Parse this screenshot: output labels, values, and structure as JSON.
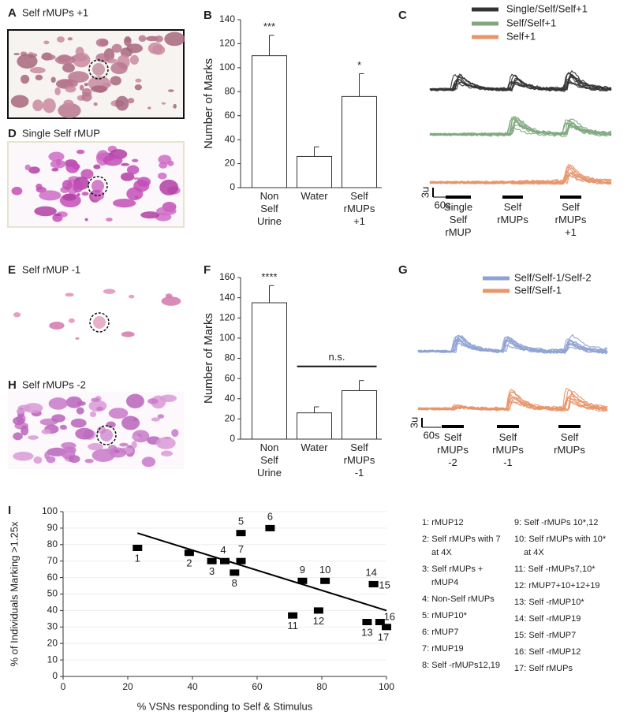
{
  "panels": [
    {
      "letter": "A",
      "title": "Self rMUPs +1"
    },
    {
      "letter": "D",
      "title": "Single Self rMUP"
    },
    {
      "letter": "E",
      "title": "Self rMUP -1"
    },
    {
      "letter": "H",
      "title": "Self rMUPs -2"
    }
  ],
  "chart_data": [
    {
      "letter": "B",
      "type": "bar",
      "ylabel": "Number of Marks",
      "categories": [
        "Non Self Urine",
        "Water",
        "Self rMUPs +1"
      ],
      "values": [
        110,
        26,
        76
      ],
      "errors": [
        17,
        8,
        19
      ],
      "significance": [
        "***",
        null,
        "*"
      ],
      "ylim": [
        0,
        140
      ],
      "yticks": [
        0,
        20,
        40,
        60,
        80,
        100,
        120,
        140
      ],
      "color": "#ffffff"
    },
    {
      "letter": "C",
      "type": "traces",
      "series": [
        {
          "name": "Single/Self/Self+1",
          "color": "#333333"
        },
        {
          "name": "Self/Self+1",
          "color": "#7fa87f"
        },
        {
          "name": "Self+1",
          "color": "#e8956a"
        }
      ],
      "stimuli": [
        "Single Self rMUP",
        "Self rMUPs",
        "Self rMUPs +1"
      ],
      "scale_y": "3u",
      "scale_x": "60s"
    },
    {
      "letter": "F",
      "type": "bar",
      "ylabel": "Number of Marks",
      "categories": [
        "Non Self Urine",
        "Water",
        "Self rMUPs -1"
      ],
      "values": [
        135,
        26,
        48
      ],
      "errors": [
        17,
        6,
        10
      ],
      "significance": [
        "****",
        null,
        null
      ],
      "bracket": "n.s.",
      "ylim": [
        0,
        160
      ],
      "yticks": [
        0,
        20,
        40,
        60,
        80,
        100,
        120,
        140,
        160
      ],
      "color": "#ffffff"
    },
    {
      "letter": "G",
      "type": "traces",
      "series": [
        {
          "name": "Self/Self-1/Self-2",
          "color": "#8fa3d3"
        },
        {
          "name": "Self/Self-1",
          "color": "#e8956a"
        }
      ],
      "stimuli": [
        "Self rMUPs -2",
        "Self rMUPs -1",
        "Self rMUPs"
      ],
      "scale_y": "3u",
      "scale_x": "60s"
    },
    {
      "letter": "I",
      "type": "scatter",
      "xlabel": "% VSNs responding to Self & Stimulus",
      "ylabel": "% of Individuals Marking >1.25x",
      "x": [
        23,
        39,
        46,
        50,
        55,
        64,
        55,
        53,
        74,
        81,
        71,
        79,
        94,
        96,
        96,
        98,
        100
      ],
      "y": [
        78,
        75,
        70,
        70,
        87,
        90,
        70,
        63,
        58,
        58,
        37,
        40,
        33,
        56,
        56,
        33,
        30
      ],
      "labels": [
        "1",
        "2",
        "3",
        "4",
        "5",
        "6",
        "7",
        "8",
        "9",
        "10",
        "11",
        "12",
        "13",
        "14",
        "15",
        "16",
        "17"
      ],
      "trendline": {
        "x": [
          23,
          100
        ],
        "y": [
          87,
          40
        ]
      },
      "xlim": [
        0,
        100
      ],
      "xticks": [
        0,
        20,
        40,
        60,
        80,
        100
      ],
      "ylim": [
        0,
        100
      ],
      "yticks": [
        0,
        10,
        20,
        30,
        40,
        50,
        60,
        70,
        80,
        90,
        100
      ],
      "grid": true,
      "color": "#000000",
      "key": [
        [
          "1:  rMUP12"
        ],
        [
          "2: Self rMUPs with 7",
          "at 4X"
        ],
        [
          "3: Self rMUPs +",
          "rMUP4"
        ],
        [
          "4: Non-Self rMUPs"
        ],
        [
          "5: rMUP10*"
        ],
        [
          "6: rMUP7"
        ],
        [
          "7: rMUP19"
        ],
        [
          "8: Self -rMUPs12,19"
        ],
        [
          "9: Self -rMUPs 10*,12"
        ],
        [
          "10: Self rMUPs with 10*",
          "at 4X"
        ],
        [
          "11: Self -rMUPs7,10*"
        ],
        [
          "12: rMUP7+10+12+19"
        ],
        [
          "13: Self -rMUP10*"
        ],
        [
          "14: Self -rMUP19"
        ],
        [
          "15: Self -rMUP7"
        ],
        [
          "16: Self -rMUP12"
        ],
        [
          "17: Self rMUPs"
        ]
      ]
    }
  ]
}
